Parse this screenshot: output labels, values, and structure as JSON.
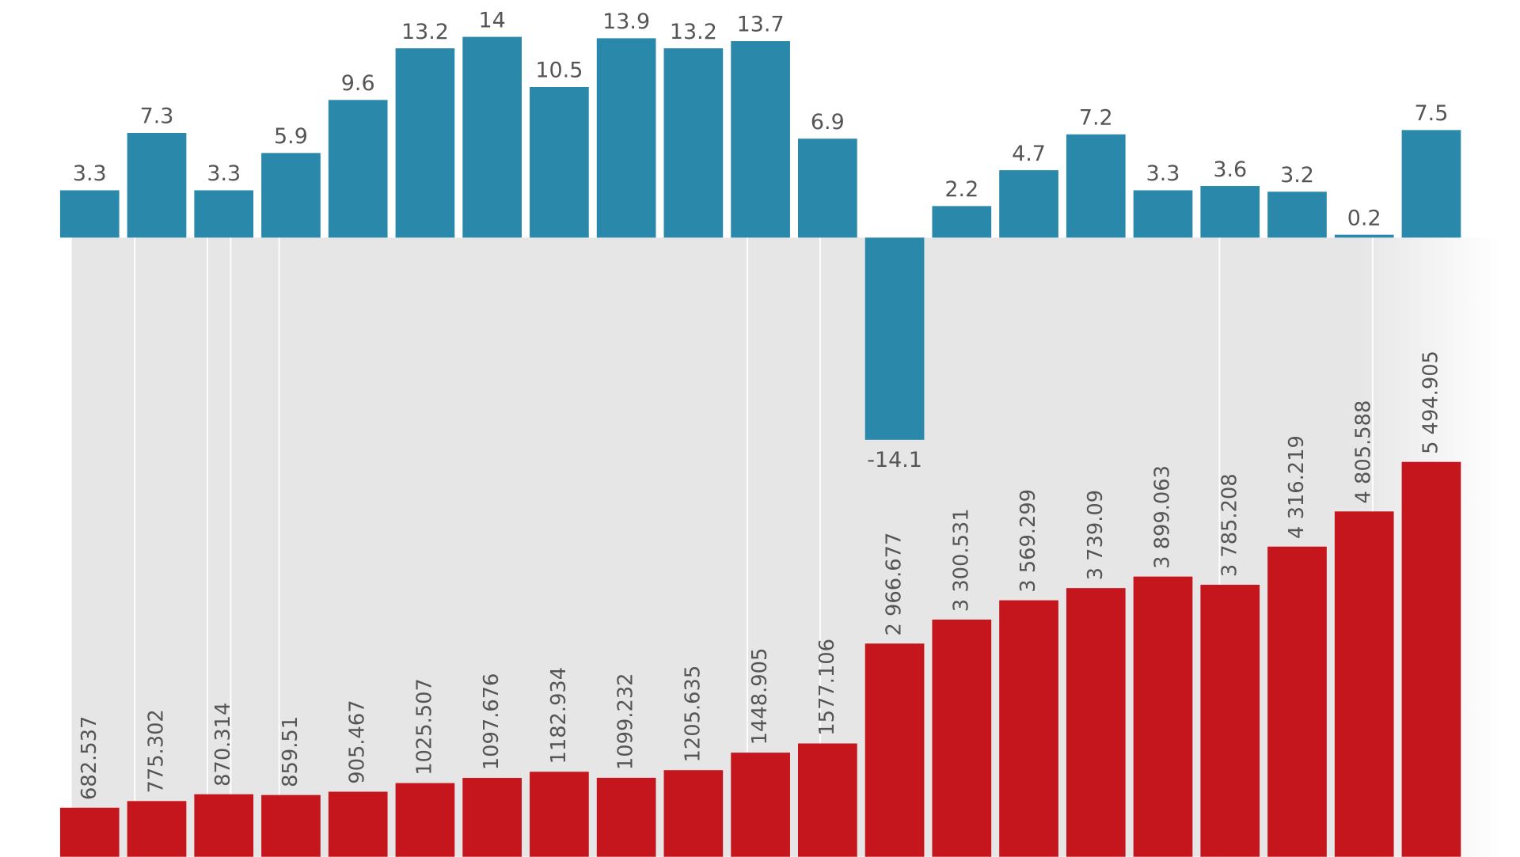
{
  "chart_data": [
    {
      "type": "bar",
      "color": "#2a88aa",
      "values": [
        3.3,
        7.3,
        3.3,
        5.9,
        9.6,
        13.2,
        14,
        10.5,
        13.9,
        13.2,
        13.7,
        6.9,
        -14.1,
        2.2,
        4.7,
        7.2,
        3.3,
        3.6,
        3.2,
        0.2,
        7.5
      ],
      "ylim": [
        -15,
        15
      ]
    },
    {
      "type": "bar",
      "color": "#c4161c",
      "values": [
        682.537,
        775.302,
        870.314,
        859.51,
        905.467,
        1025.507,
        1097.676,
        1182.934,
        1099.232,
        1205.635,
        1448.905,
        1577.106,
        2966.677,
        3300.531,
        3569.299,
        3739.09,
        3899.063,
        3785.208,
        4316.219,
        4805.588,
        5494.905
      ],
      "value_labels": [
        "682.537",
        "775.302",
        "870.314",
        "859.51",
        "905.467",
        "1025.507",
        "1097.676",
        "1182.934",
        "1099.232",
        "1205.635",
        "1448.905",
        "1577.106",
        "2 966.677",
        "3 300.531",
        "3 569.299",
        "3 739.09",
        "3 899.063",
        "3 785.208",
        "4 316.219",
        "4 805.588",
        "5 494.905"
      ],
      "ylim": [
        0,
        6000
      ]
    }
  ]
}
